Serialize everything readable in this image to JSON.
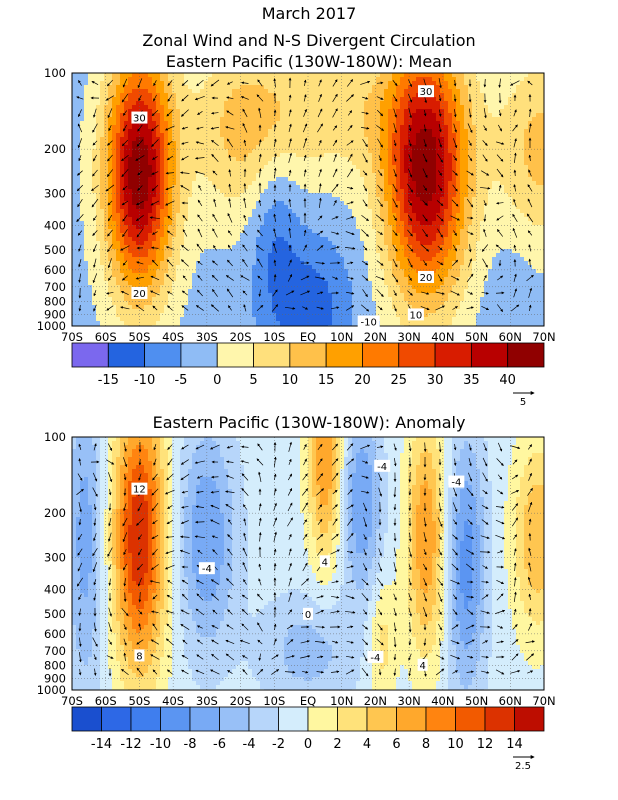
{
  "header": {
    "title": "March 2017",
    "subtitle": "Zonal Wind and N-S Divergent Circulation"
  },
  "chart_data": [
    {
      "type": "heatmap",
      "title": "Eastern Pacific (130W-180W): Mean",
      "x_ticks": [
        "70S",
        "60S",
        "50S",
        "40S",
        "30S",
        "20S",
        "10S",
        "EQ",
        "10N",
        "20N",
        "30N",
        "40N",
        "50N",
        "60N",
        "70N"
      ],
      "y_ticks": [
        "100",
        "200",
        "300",
        "400",
        "500",
        "600",
        "700",
        "800",
        "900",
        "1000"
      ],
      "y_scale": "log",
      "ylim": [
        1000,
        100
      ],
      "xlim": [
        -70,
        70
      ],
      "colorbar_levels": [
        -20,
        -15,
        -10,
        -5,
        0,
        5,
        10,
        15,
        20,
        25,
        30,
        35,
        40,
        45
      ],
      "colorbar_labels": [
        "-15",
        "-10",
        "-5",
        "0",
        "5",
        "10",
        "15",
        "20",
        "25",
        "30",
        "35",
        "40"
      ],
      "colorbar_colors": [
        "#7b68ee",
        "#2464e0",
        "#4f8ff0",
        "#8fbcf5",
        "#fff6ac",
        "#ffe07c",
        "#ffc14a",
        "#ffa000",
        "#ff7a00",
        "#f04a00",
        "#d81c00",
        "#b80000",
        "#900000"
      ],
      "vector_reference": "5",
      "contour_labels": [
        "30",
        "20",
        "30",
        "20",
        "10",
        "-10"
      ],
      "grid": true
    },
    {
      "type": "heatmap",
      "title": "Eastern Pacific (130W-180W): Anomaly",
      "x_ticks": [
        "70S",
        "60S",
        "50S",
        "40S",
        "30S",
        "20S",
        "10S",
        "EQ",
        "10N",
        "20N",
        "30N",
        "40N",
        "50N",
        "60N",
        "70N"
      ],
      "y_ticks": [
        "100",
        "200",
        "300",
        "400",
        "500",
        "600",
        "700",
        "800",
        "900",
        "1000"
      ],
      "y_scale": "log",
      "ylim": [
        1000,
        100
      ],
      "xlim": [
        -70,
        70
      ],
      "colorbar_levels": [
        -16,
        -14,
        -12,
        -10,
        -8,
        -6,
        -4,
        -2,
        0,
        2,
        4,
        6,
        8,
        10,
        12,
        14,
        16
      ],
      "colorbar_labels": [
        "-14",
        "-12",
        "-10",
        "-8",
        "-6",
        "-4",
        "-2",
        "0",
        "2",
        "4",
        "6",
        "8",
        "10",
        "12",
        "14"
      ],
      "colorbar_colors": [
        "#1a4fcf",
        "#2d68e6",
        "#3f7eee",
        "#5b95f2",
        "#78aaf5",
        "#98c0f7",
        "#b7d6fa",
        "#d4edfc",
        "#fff7a0",
        "#ffe27a",
        "#ffc650",
        "#ffa82c",
        "#ff8410",
        "#f25a00",
        "#dc3200",
        "#bd0d00"
      ],
      "vector_reference": "2.5",
      "contour_labels": [
        "12",
        "8",
        "-4",
        "-4",
        "-4",
        "4",
        "0",
        "-4",
        "4"
      ],
      "grid": true
    }
  ]
}
